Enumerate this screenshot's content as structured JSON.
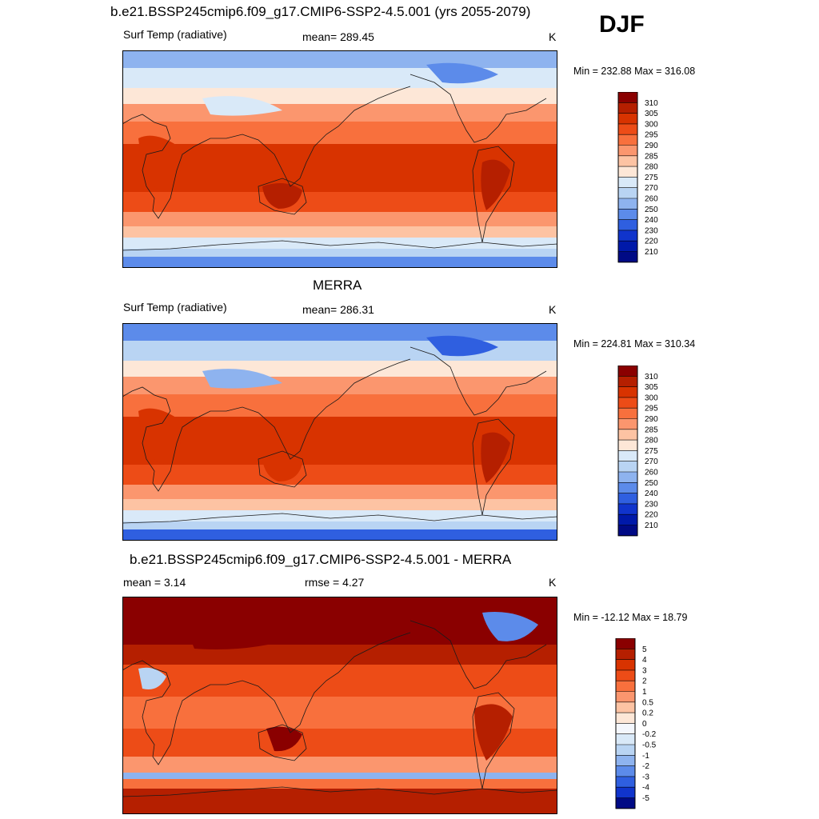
{
  "header": {
    "title": "b.e21.BSSP245cmip6.f09_g17.CMIP6-SSP2-4.5.001 (yrs 2055-2079)",
    "season": "DJF"
  },
  "panels": [
    {
      "left_label": "Surf Temp (radiative)",
      "center_label": "mean= 289.45",
      "unit": "K",
      "minmax": "Min = 232.88 Max = 316.08"
    },
    {
      "title": "MERRA",
      "left_label": "Surf Temp (radiative)",
      "center_label": "mean= 286.31",
      "unit": "K",
      "minmax": "Min = 224.81 Max = 310.34"
    },
    {
      "title": "b.e21.BSSP245cmip6.f09_g17.CMIP6-SSP2-4.5.001 - MERRA",
      "left_label": "mean =   3.14",
      "center_label": "rmse =   4.27",
      "unit": "K",
      "minmax": "Min = -12.12 Max =  18.79"
    }
  ],
  "chart_data": [
    {
      "type": "heatmap",
      "variable": "Surf Temp (radiative)",
      "unit": "K",
      "mean": 289.45,
      "min": 232.88,
      "max": 316.08,
      "colorbar_levels": [
        "310",
        "305",
        "300",
        "295",
        "290",
        "285",
        "280",
        "275",
        "270",
        "260",
        "250",
        "240",
        "230",
        "220",
        "210"
      ],
      "colorbar_colors": [
        "#8a0000",
        "#b51f00",
        "#d83300",
        "#ed4c17",
        "#f8703d",
        "#fb966e",
        "#fdc3a3",
        "#fde7d7",
        "#d9e9f8",
        "#b9d4f3",
        "#8eb3ef",
        "#5c8bea",
        "#2f5fe0",
        "#1034cc",
        "#0019a9",
        "#000a85"
      ]
    },
    {
      "type": "heatmap",
      "title": "MERRA",
      "variable": "Surf Temp (radiative)",
      "unit": "K",
      "mean": 286.31,
      "min": 224.81,
      "max": 310.34,
      "colorbar_levels": [
        "310",
        "305",
        "300",
        "295",
        "290",
        "285",
        "280",
        "275",
        "270",
        "260",
        "250",
        "240",
        "230",
        "220",
        "210"
      ],
      "colorbar_colors": [
        "#8a0000",
        "#b51f00",
        "#d83300",
        "#ed4c17",
        "#f8703d",
        "#fb966e",
        "#fdc3a3",
        "#fde7d7",
        "#d9e9f8",
        "#b9d4f3",
        "#8eb3ef",
        "#5c8bea",
        "#2f5fe0",
        "#1034cc",
        "#0019a9",
        "#000a85"
      ]
    },
    {
      "type": "heatmap",
      "title": "b.e21.BSSP245cmip6.f09_g17.CMIP6-SSP2-4.5.001 - MERRA",
      "unit": "K",
      "mean": 3.14,
      "rmse": 4.27,
      "min": -12.12,
      "max": 18.79,
      "colorbar_levels": [
        "5",
        "4",
        "3",
        "2",
        "1",
        "0.5",
        "0.2",
        "0",
        "-0.2",
        "-0.5",
        "-1",
        "-2",
        "-3",
        "-4",
        "-5"
      ],
      "colorbar_colors": [
        "#8a0000",
        "#b51f00",
        "#d83300",
        "#ed4c17",
        "#f8703d",
        "#fb966e",
        "#fdc3a3",
        "#fde7d7",
        "#f4f7fd",
        "#d9e9f8",
        "#b9d4f3",
        "#8eb3ef",
        "#5c8bea",
        "#2f5fe0",
        "#1034cc",
        "#000a85"
      ]
    }
  ]
}
